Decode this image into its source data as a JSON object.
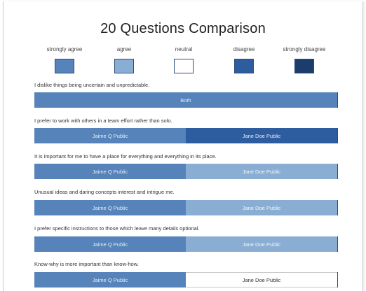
{
  "page": {
    "title": "20 Questions Comparison"
  },
  "colors": {
    "strongly_agree": "#5683b9",
    "agree": "#8aaed3",
    "neutral": "#ffffff",
    "disagree": "#2d5d9e",
    "strongly_disagree": "#1c3d6b"
  },
  "legend": [
    {
      "label": "strongly agree",
      "color": "#5683b9"
    },
    {
      "label": "agree",
      "color": "#8aaed3"
    },
    {
      "label": "neutral",
      "color": "#ffffff"
    },
    {
      "label": "disagree",
      "color": "#2d5d9e"
    },
    {
      "label": "strongly disagree",
      "color": "#1c3d6b"
    }
  ],
  "questions": [
    {
      "text": "I dislike things being uncertain and unpredictable.",
      "segments": [
        {
          "label": "Both",
          "color": "#5683b9",
          "share": 1
        }
      ]
    },
    {
      "text": "I prefer to work with others in a team effort rather than solo.",
      "segments": [
        {
          "label": "Jaime Q Public",
          "color": "#5683b9",
          "share": 0.5
        },
        {
          "label": "Jane Doe Public",
          "color": "#2d5d9e",
          "share": 0.5
        }
      ]
    },
    {
      "text": "It is important for me to have a place for everything and everything in its place.",
      "segments": [
        {
          "label": "Jaime Q Public",
          "color": "#5683b9",
          "share": 0.5
        },
        {
          "label": "Jane Doe Public",
          "color": "#8aaed3",
          "share": 0.5
        }
      ]
    },
    {
      "text": "Unusual ideas and daring concepts interest and intrigue me.",
      "segments": [
        {
          "label": "Jaime Q Public",
          "color": "#5683b9",
          "share": 0.5
        },
        {
          "label": "Jane Doe Public",
          "color": "#8aaed3",
          "share": 0.5
        }
      ]
    },
    {
      "text": "I prefer specific instructions to those which leave many details optional.",
      "segments": [
        {
          "label": "Jaime Q Public",
          "color": "#5683b9",
          "share": 0.5
        },
        {
          "label": "Jane Doe Public",
          "color": "#8aaed3",
          "share": 0.5
        }
      ]
    },
    {
      "text": "Know-why is more important than know-how.",
      "segments": [
        {
          "label": "Jaime Q Public",
          "color": "#5683b9",
          "share": 0.5
        },
        {
          "label": "Jane Doe Public",
          "color": "#ffffff",
          "share": 0.5
        }
      ]
    }
  ]
}
